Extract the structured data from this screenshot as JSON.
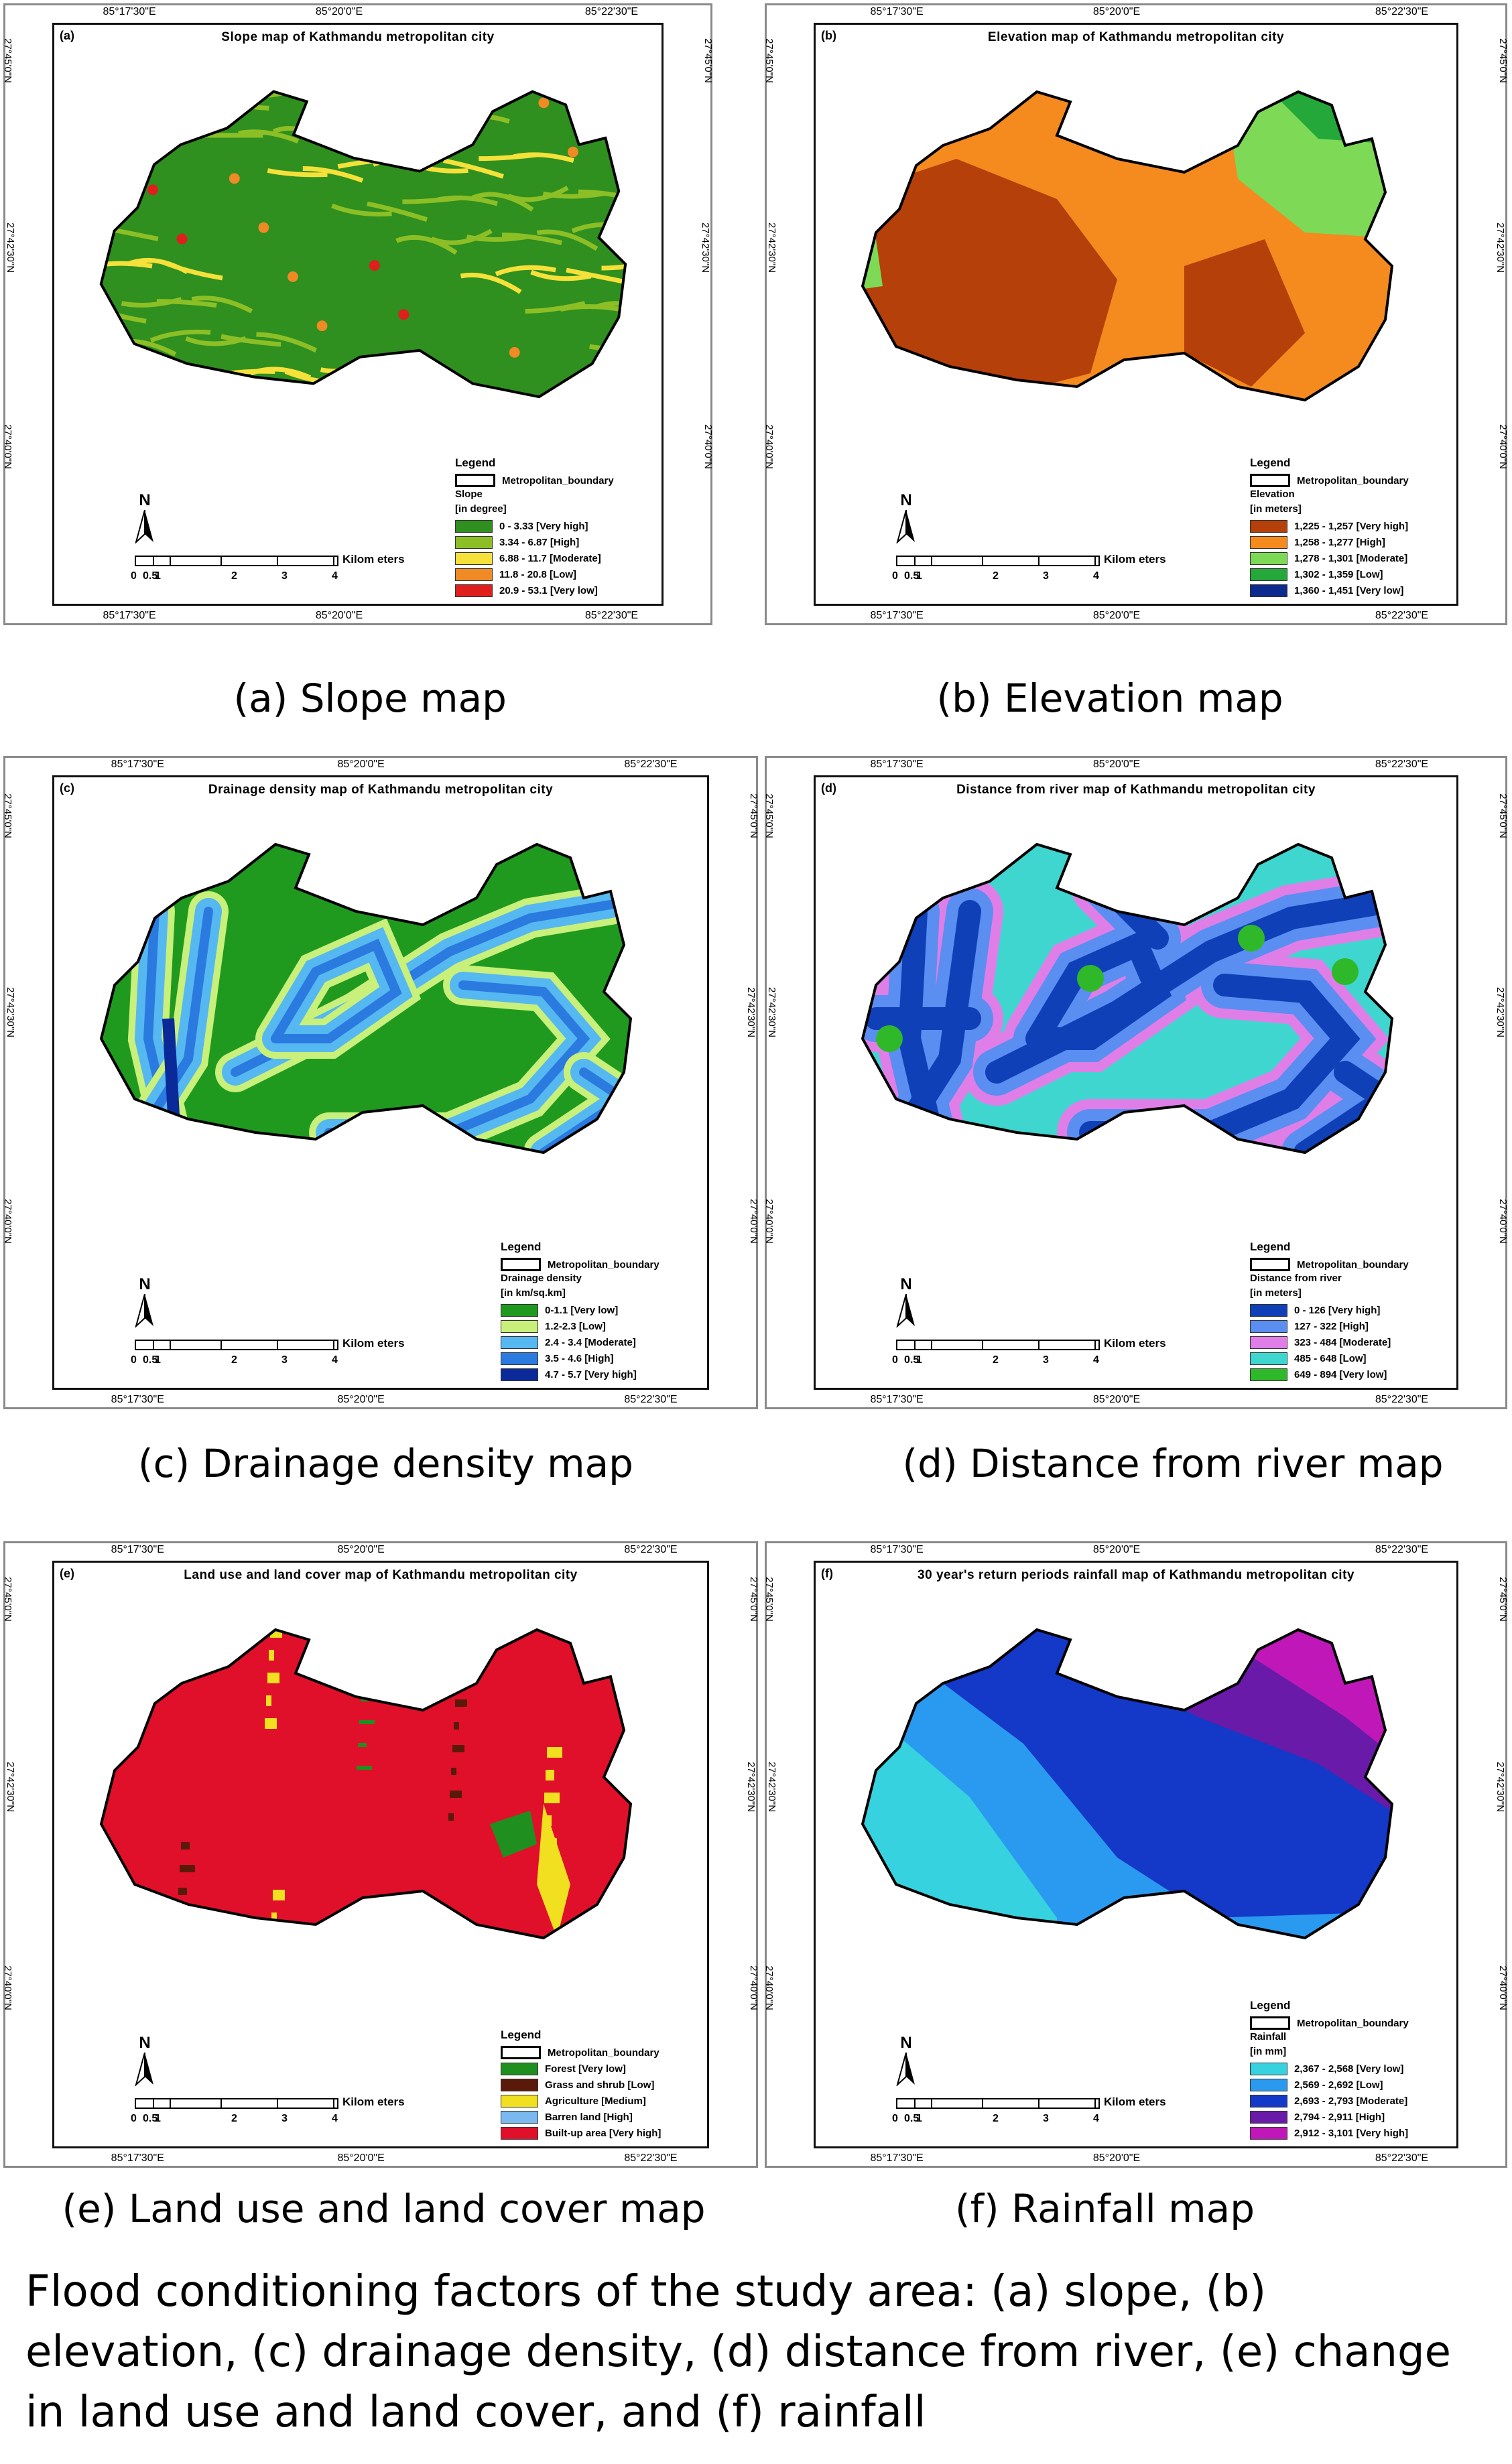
{
  "figure_caption": "Flood conditioning factors of the study area: (a) slope, (b) elevation, (c) drainage density, (d) distance from river, (e) change in land use and land cover, and (f) rainfall",
  "common": {
    "lon_labels": [
      "85°17'30\"E",
      "85°20'0\"E",
      "85°22'30\"E"
    ],
    "lat_labels": [
      "27°45'0\"N",
      "27°42'30\"N",
      "27°40'0\"N"
    ],
    "north_label": "N",
    "scale_ticks": [
      "0",
      "0.5",
      "1",
      "2",
      "3",
      "4"
    ],
    "scale_unit": "Kilom eters",
    "legend_title": "Legend",
    "boundary_label": "Metropolitan_boundary"
  },
  "panels": [
    {
      "tag": "(a)",
      "title": "Slope map of Kathmandu metropolitan city",
      "caption": "(a) Slope map",
      "legend_heading": "Slope",
      "legend_unit": "[in degree]",
      "classes": [
        {
          "label": "0 - 3.33 [Very high]",
          "color": "#2f8f1f"
        },
        {
          "label": "3.34 - 6.87 [High]",
          "color": "#8cbf26"
        },
        {
          "label": "6.88 - 11.7 [Moderate]",
          "color": "#f5e13a"
        },
        {
          "label": "11.8 - 20.8 [Low]",
          "color": "#f08a24"
        },
        {
          "label": "20.9 - 53.1 [Very low]",
          "color": "#e01e1e"
        }
      ]
    },
    {
      "tag": "(b)",
      "title": "Elevation map of Kathmandu metropolitan city",
      "caption": "(b) Elevation map",
      "legend_heading": "Elevation",
      "legend_unit": "[in meters]",
      "classes": [
        {
          "label": "1,225 - 1,257 [Very high]",
          "color": "#b5400a"
        },
        {
          "label": "1,258 - 1,277 [High]",
          "color": "#f58a1f"
        },
        {
          "label": "1,278 - 1,301 [Moderate]",
          "color": "#7ed957"
        },
        {
          "label": "1,302 - 1,359 [Low]",
          "color": "#25a83a"
        },
        {
          "label": "1,360 - 1,451 [Very low]",
          "color": "#0d2a8f"
        }
      ]
    },
    {
      "tag": "(c)",
      "title": "Drainage density map of Kathmandu metropolitan city",
      "caption": "(c) Drainage density map",
      "legend_heading": "Drainage density",
      "legend_unit": "[in km/sq.km]",
      "classes": [
        {
          "label": "0-1.1 [Very low]",
          "color": "#1f9a1f"
        },
        {
          "label": "1.2-2.3 [Low]",
          "color": "#c8f07a"
        },
        {
          "label": "2.4 - 3.4 [Moderate]",
          "color": "#56b8f0"
        },
        {
          "label": "3.5 - 4.6 [High]",
          "color": "#2a7ae0"
        },
        {
          "label": "4.7 - 5.7 [Very high]",
          "color": "#0a2a9a"
        }
      ]
    },
    {
      "tag": "(d)",
      "title": "Distance from river map of Kathmandu metropolitan city",
      "caption": "(d) Distance from river map",
      "legend_heading": "Distance from river",
      "legend_unit": "[in meters]",
      "classes": [
        {
          "label": "0 - 126 [Very high]",
          "color": "#1040b8"
        },
        {
          "label": "127 - 322 [High]",
          "color": "#5a8ef0"
        },
        {
          "label": "323 - 484 [Moderate]",
          "color": "#e07ee8"
        },
        {
          "label": "485 - 648 [Low]",
          "color": "#3fd6d0"
        },
        {
          "label": "649 - 894 [Very low]",
          "color": "#2fb82a"
        }
      ]
    },
    {
      "tag": "(e)",
      "title": "Land use and land cover map of Kathmandu metropolitan city",
      "caption": "(e) Land use and land cover map",
      "legend_heading": "",
      "legend_unit": "",
      "classes": [
        {
          "label": "Forest [Very low]",
          "color": "#1f8f1f"
        },
        {
          "label": "Grass and shrub [Low]",
          "color": "#5a1a0a"
        },
        {
          "label": "Agriculture [Medium]",
          "color": "#f0e020"
        },
        {
          "label": "Barren land [High]",
          "color": "#7ab8f0"
        },
        {
          "label": "Built-up area [Very high]",
          "color": "#e0102a"
        }
      ]
    },
    {
      "tag": "(f)",
      "title": "30 year's return periods rainfall map of Kathmandu metropolitan city",
      "caption": "(f) Rainfall map",
      "legend_heading": "Rainfall",
      "legend_unit": "[in mm]",
      "classes": [
        {
          "label": "2,367 - 2,568 [Very low]",
          "color": "#36d2e0"
        },
        {
          "label": "2,569 - 2,692 [Low]",
          "color": "#2a9af0"
        },
        {
          "label": "2,693 - 2,793 [Moderate]",
          "color": "#1438c8"
        },
        {
          "label": "2,794 - 2,911 [High]",
          "color": "#6a1aa8"
        },
        {
          "label": "2,912 - 3,101 [Very high]",
          "color": "#c018b8"
        }
      ]
    }
  ]
}
